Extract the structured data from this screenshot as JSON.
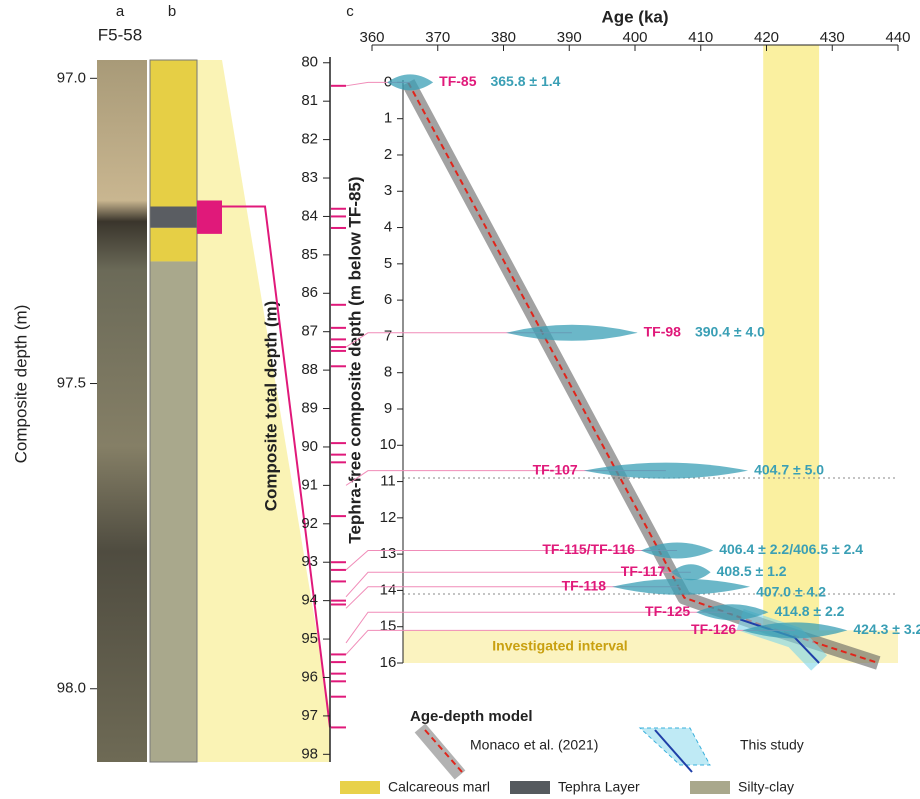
{
  "panel_labels": [
    "a",
    "b",
    "c"
  ],
  "core": {
    "name": "F5-58",
    "y_label": "Composite depth (m)",
    "ylim": [
      96.97,
      98.12
    ],
    "yticks": [
      {
        "value": 97,
        "label": "97.0"
      },
      {
        "value": 97.5,
        "label": "97.5"
      },
      {
        "value": 98,
        "label": "98.0"
      }
    ],
    "layers": [
      {
        "color": "#e6cf45",
        "top": 96.97,
        "bottom": 97.21
      },
      {
        "color": "#5a5d62",
        "top": 97.21,
        "bottom": 97.245
      },
      {
        "color": "#e6cf45",
        "top": 97.245,
        "bottom": 97.3
      },
      {
        "color": "#a9a88c",
        "top": 97.3,
        "bottom": 98.12
      }
    ]
  },
  "chart_data": {
    "type": "scatter",
    "x_label": "Age (ka)",
    "xlim": [
      360,
      440
    ],
    "xticks": [
      360,
      370,
      380,
      390,
      400,
      410,
      420,
      430,
      440
    ],
    "y_label": "Tephra-free composite depth (m below TF-85)",
    "ylim": [
      -0.7,
      16
    ],
    "yticks": [
      0,
      1,
      2,
      3,
      4,
      5,
      6,
      7,
      8,
      9,
      10,
      11,
      12,
      13,
      14,
      15,
      16
    ],
    "y2_label": "Composite total depth (m)",
    "y2lim": [
      79.85,
      98.2
    ],
    "y2ticks": [
      80,
      81,
      82,
      83,
      84,
      85,
      86,
      87,
      88,
      89,
      90,
      91,
      92,
      93,
      94,
      95,
      96,
      97,
      98
    ],
    "age_band": [
      419.5,
      428
    ],
    "investigated_interval": {
      "label": "Investigated interval",
      "depths": [
        15.1,
        16
      ]
    },
    "composite_tephra_depths": [
      80.6,
      83.8,
      84.0,
      84.3,
      86.3,
      86.9,
      87.2,
      87.4,
      87.5,
      87.9,
      89.9,
      90.2,
      90.4,
      91.8,
      93.0,
      93.2,
      93.5,
      94.0,
      94.1,
      95.4,
      95.6,
      95.9,
      96.1,
      96.5,
      97.3
    ],
    "tephra": {
      "names": [
        "TF-85",
        "TF-98",
        "TF-107",
        "TF-115/TF-116",
        "TF-117",
        "TF-118",
        "TF-125",
        "TF-126"
      ],
      "depths": [
        0,
        6.9,
        10.7,
        12.9,
        13.5,
        13.9,
        14.6,
        15.1
      ],
      "composite_depths": [
        80.6,
        87.4,
        91.0,
        93.2,
        93.9,
        94.2,
        95.1,
        95.4
      ],
      "ages": [
        365.8,
        390.4,
        404.7,
        406.4,
        408.5,
        407.0,
        414.8,
        424.3
      ],
      "errors": [
        1.4,
        4.0,
        5.0,
        2.2,
        1.2,
        4.2,
        2.2,
        3.2
      ],
      "value_labels": [
        "365.8 ± 1.4",
        "390.4 ± 4.0",
        "404.7 ± 5.0",
        "406.4 ± 2.2/406.5 ± 2.4",
        "408.5 ± 1.2",
        "407.0 ± 4.2",
        "414.8 ± 2.2",
        "424.3 ± 3.2"
      ]
    },
    "models": [
      {
        "name": "Monaco et al. (2021)",
        "color": "#e0251b",
        "x": [
          365.5,
          407.5,
          420,
          437
        ],
        "y": [
          0,
          14.2,
          15.0,
          16
        ]
      },
      {
        "name": "This study",
        "color": "#1f3fa8",
        "x": [
          416,
          424.3,
          428
        ],
        "y": [
          14.8,
          15.3,
          16
        ]
      }
    ],
    "model_legend_title": "Age-depth model",
    "lithology_legend": [
      {
        "name": "Calcareous marl",
        "color": "#e8d14a"
      },
      {
        "name": "Tephra Layer",
        "color": "#555a5e"
      },
      {
        "name": "Silty-clay",
        "color": "#a9a88c"
      }
    ]
  }
}
